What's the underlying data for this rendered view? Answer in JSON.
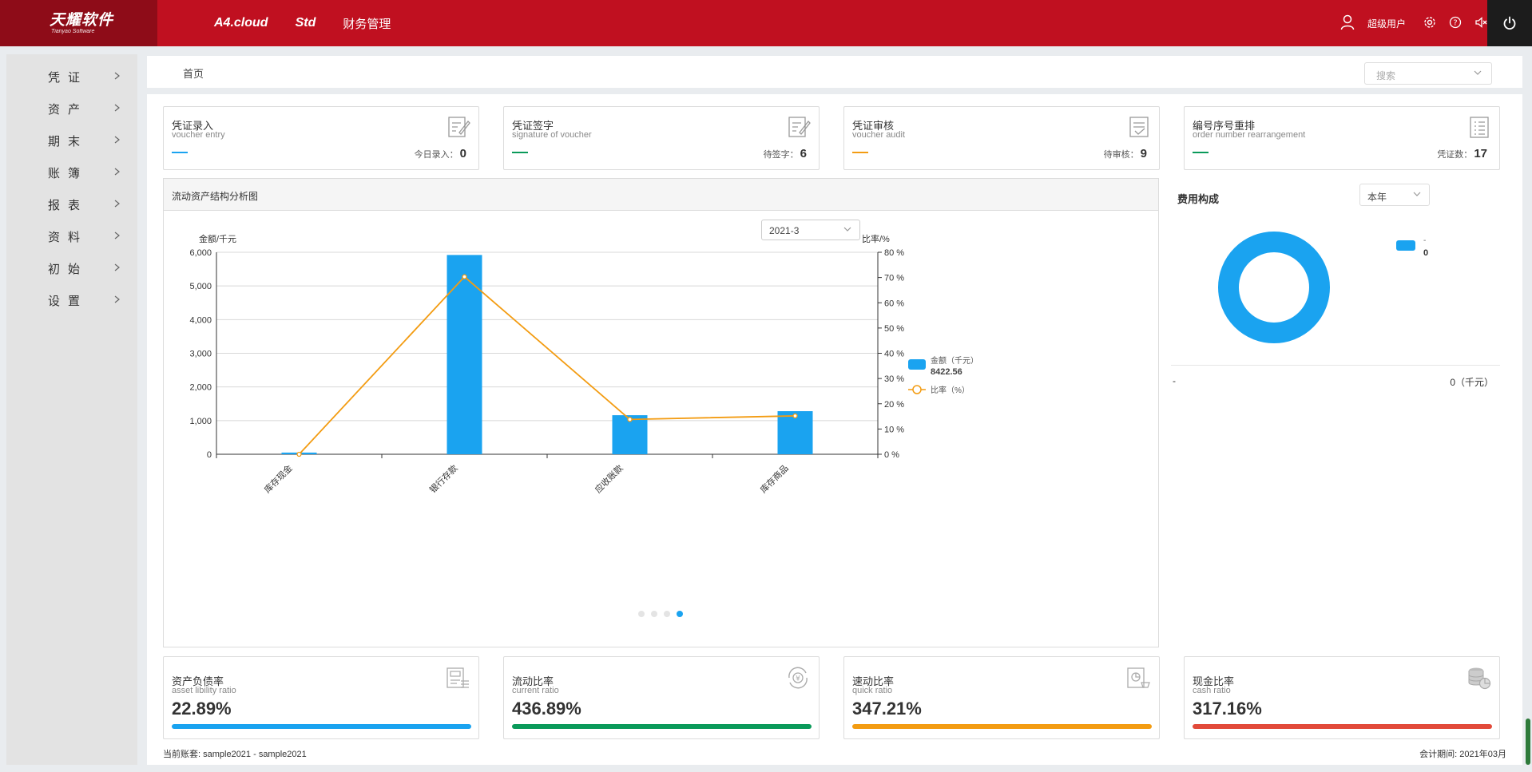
{
  "header": {
    "logo_main": "天耀软件",
    "logo_sub": "Tianyao Software",
    "nav": [
      "A4.cloud",
      "Std",
      "财务管理"
    ],
    "user_label": "超级用户"
  },
  "sidebar": {
    "items": [
      "凭证",
      "资产",
      "期末",
      "账簿",
      "报表",
      "资料",
      "初始",
      "设置"
    ]
  },
  "breadcrumb": {
    "home": "首页"
  },
  "search": {
    "placeholder": "搜索"
  },
  "cards": [
    {
      "title": "凭证录入",
      "subtitle": "voucher entry",
      "count_label": "今日录入：",
      "count": "0",
      "color": "#1aa3f0"
    },
    {
      "title": "凭证签字",
      "subtitle": "signature of voucher",
      "count_label": "待签字：",
      "count": "6",
      "color": "#0a9a5a"
    },
    {
      "title": "凭证审核",
      "subtitle": "voucher audit",
      "count_label": "待审核：",
      "count": "9",
      "color": "#f39c12"
    },
    {
      "title": "编号序号重排",
      "subtitle": "order number rearrangement",
      "count_label": "凭证数：",
      "count": "17",
      "color": "#0a9a5a"
    }
  ],
  "chart_panel": {
    "title": "流动资产结构分析图",
    "period": "2021-3",
    "legend_amount": "金额（千元）",
    "legend_amount_total": "8422.56",
    "legend_ratio": "比率（%）"
  },
  "chart_data": {
    "type": "bar",
    "categories": [
      "库存现金",
      "银行存款",
      "应收账款",
      "库存商品"
    ],
    "series": [
      {
        "name": "金额（千元）",
        "type": "bar",
        "axis": "left",
        "values": [
          50,
          5920,
          1160,
          1280
        ],
        "color": "#1aa3f0"
      },
      {
        "name": "比率（%）",
        "type": "line",
        "axis": "right",
        "values": [
          0,
          70.3,
          13.8,
          15.2
        ],
        "color": "#f39c12"
      }
    ],
    "ylabel": "金额/千元",
    "ylabel_right": "比率/%",
    "ylim": [
      0,
      6000
    ],
    "ylim_right": [
      0,
      80
    ],
    "yticks": [
      "6,000",
      "5,000",
      "4,000",
      "3,000",
      "2,000",
      "1,000",
      "0"
    ],
    "yticks_right": [
      "80 %",
      "70 %",
      "60 %",
      "50 %",
      "40 %",
      "30 %",
      "20 %",
      "10 %",
      "0 %"
    ]
  },
  "pie_panel": {
    "title": "费用构成",
    "range": "本年",
    "legend_name": "-",
    "legend_value": "0",
    "row_name": "-",
    "row_value": "0（千元）"
  },
  "ratios": [
    {
      "title": "资产负债率",
      "subtitle": "asset libility ratio",
      "value": "22.89%",
      "color": "#1aa3f0",
      "fill": 1.0
    },
    {
      "title": "流动比率",
      "subtitle": "current ratio",
      "value": "436.89%",
      "color": "#0a9a5a",
      "fill": 1.0
    },
    {
      "title": "速动比率",
      "subtitle": "quick ratio",
      "value": "347.21%",
      "color": "#f39c12",
      "fill": 1.0
    },
    {
      "title": "现金比率",
      "subtitle": "cash ratio",
      "value": "317.16%",
      "color": "#e24a3a",
      "fill": 1.0
    }
  ],
  "footer": {
    "account": "当前账套: sample2021 - sample2021",
    "period": "会计期间: 2021年03月"
  }
}
